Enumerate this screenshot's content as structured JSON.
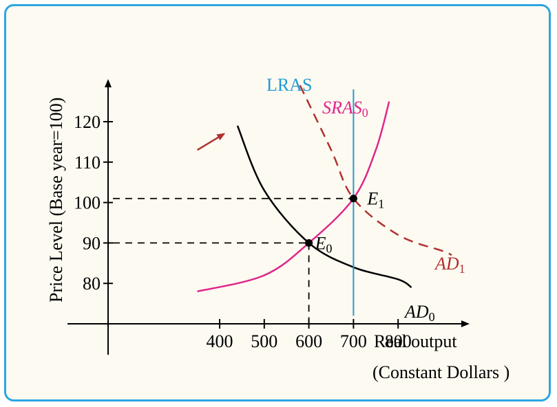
{
  "chart_data": {
    "type": "line",
    "ylabel": "Price Level (Base year=100)",
    "xlabel": "Real output",
    "xlabel_sub": "(Constant Dollars )",
    "x_ticks": [
      400,
      500,
      600,
      700,
      800
    ],
    "y_ticks": [
      80,
      90,
      100,
      110,
      120
    ],
    "xlim": [
      150,
      950
    ],
    "ylim": [
      70,
      132
    ],
    "grid": false,
    "series": [
      {
        "name": "AD",
        "sub": "0",
        "style": "solid",
        "color": "#000000",
        "points": [
          [
            440,
            119
          ],
          [
            500,
            103
          ],
          [
            600,
            90
          ],
          [
            700,
            84
          ],
          [
            800,
            81
          ],
          [
            830,
            79
          ]
        ]
      },
      {
        "name": "AD",
        "sub": "1",
        "style": "dashed",
        "color": "#b03030",
        "points": [
          [
            580,
            129
          ],
          [
            650,
            113
          ],
          [
            700,
            101
          ],
          [
            800,
            92
          ],
          [
            900,
            88
          ],
          [
            920,
            87
          ]
        ]
      },
      {
        "name": "SRAS",
        "sub": "0",
        "style": "solid",
        "color": "#e0268a",
        "points": [
          [
            350,
            78
          ],
          [
            500,
            82
          ],
          [
            600,
            90
          ],
          [
            700,
            101
          ],
          [
            750,
            113
          ],
          [
            780,
            125
          ]
        ]
      },
      {
        "name": "LRAS",
        "sub": "",
        "style": "solid",
        "color": "#1f9ad6",
        "points": [
          [
            700,
            72
          ],
          [
            700,
            128
          ]
        ]
      }
    ],
    "equilibria": [
      {
        "label": "E",
        "sub": "0",
        "x": 600,
        "y": 90
      },
      {
        "label": "E",
        "sub": "1",
        "x": 700,
        "y": 101
      }
    ],
    "shift_arrow": {
      "from": [
        350,
        113
      ],
      "to": [
        410,
        117
      ],
      "color": "#b03030"
    }
  }
}
